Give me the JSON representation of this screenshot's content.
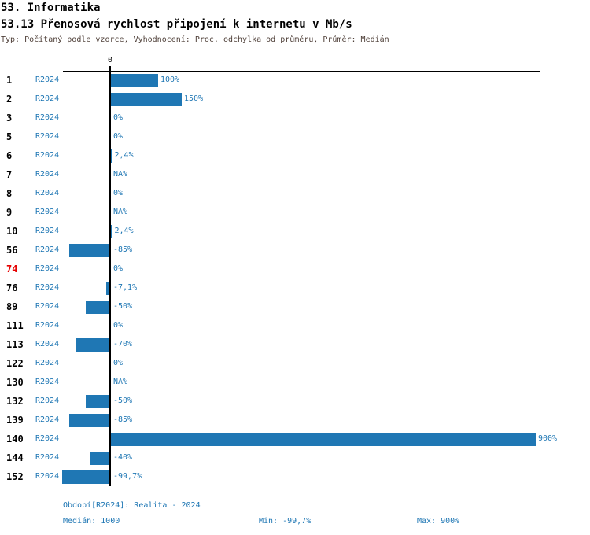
{
  "header": {
    "title": "53. Informatika",
    "subtitle": "53.13 Přenosová rychlost připojení k internetu v Mb/s",
    "meta": "Typ: Počítaný podle vzorce, Vyhodnocení: Proc. odchylka od průměru, Průměr: Medián"
  },
  "chart_data": {
    "type": "bar",
    "orientation": "horizontal",
    "title": "53.13 Přenosová rychlost připojení k internetu v Mb/s",
    "unit": "%",
    "xlim": [
      -100,
      910
    ],
    "axis": {
      "zero_label": "0"
    },
    "legend": "none",
    "grid": false,
    "rows": [
      {
        "id": "1",
        "period": "R2024",
        "value": 100,
        "label": "100%",
        "highlight": false
      },
      {
        "id": "2",
        "period": "R2024",
        "value": 150,
        "label": "150%",
        "highlight": false
      },
      {
        "id": "3",
        "period": "R2024",
        "value": 0,
        "label": "0%",
        "highlight": false
      },
      {
        "id": "5",
        "period": "R2024",
        "value": 0,
        "label": "0%",
        "highlight": false
      },
      {
        "id": "6",
        "period": "R2024",
        "value": 2.4,
        "label": "2,4%",
        "highlight": false
      },
      {
        "id": "7",
        "period": "R2024",
        "value": null,
        "label": "NA%",
        "highlight": false
      },
      {
        "id": "8",
        "period": "R2024",
        "value": 0,
        "label": "0%",
        "highlight": false
      },
      {
        "id": "9",
        "period": "R2024",
        "value": null,
        "label": "NA%",
        "highlight": false
      },
      {
        "id": "10",
        "period": "R2024",
        "value": 2.4,
        "label": "2,4%",
        "highlight": false
      },
      {
        "id": "56",
        "period": "R2024",
        "value": -85,
        "label": "-85%",
        "highlight": false
      },
      {
        "id": "74",
        "period": "R2024",
        "value": 0,
        "label": "0%",
        "highlight": true
      },
      {
        "id": "76",
        "period": "R2024",
        "value": -7.1,
        "label": "-7,1%",
        "highlight": false
      },
      {
        "id": "89",
        "period": "R2024",
        "value": -50,
        "label": "-50%",
        "highlight": false
      },
      {
        "id": "111",
        "period": "R2024",
        "value": 0,
        "label": "0%",
        "highlight": false
      },
      {
        "id": "113",
        "period": "R2024",
        "value": -70,
        "label": "-70%",
        "highlight": false
      },
      {
        "id": "122",
        "period": "R2024",
        "value": 0,
        "label": "0%",
        "highlight": false
      },
      {
        "id": "130",
        "period": "R2024",
        "value": null,
        "label": "NA%",
        "highlight": false
      },
      {
        "id": "132",
        "period": "R2024",
        "value": -50,
        "label": "-50%",
        "highlight": false
      },
      {
        "id": "139",
        "period": "R2024",
        "value": -85,
        "label": "-85%",
        "highlight": false
      },
      {
        "id": "140",
        "period": "R2024",
        "value": 900,
        "label": "900%",
        "highlight": false
      },
      {
        "id": "144",
        "period": "R2024",
        "value": -40,
        "label": "-40%",
        "highlight": false
      },
      {
        "id": "152",
        "period": "R2024",
        "value": -99.7,
        "label": "-99,7%",
        "highlight": false
      }
    ]
  },
  "footer": {
    "period_info": "Období[R2024]: Realita - 2024",
    "median": "Medián: 1000",
    "min": "Min: -99,7%",
    "max": "Max: 900%"
  },
  "colors": {
    "bar": "#1f77b4",
    "text_blue": "#1f77b4",
    "highlight_red": "#e60000",
    "meta_text": "#50413a",
    "axis": "#000000"
  }
}
